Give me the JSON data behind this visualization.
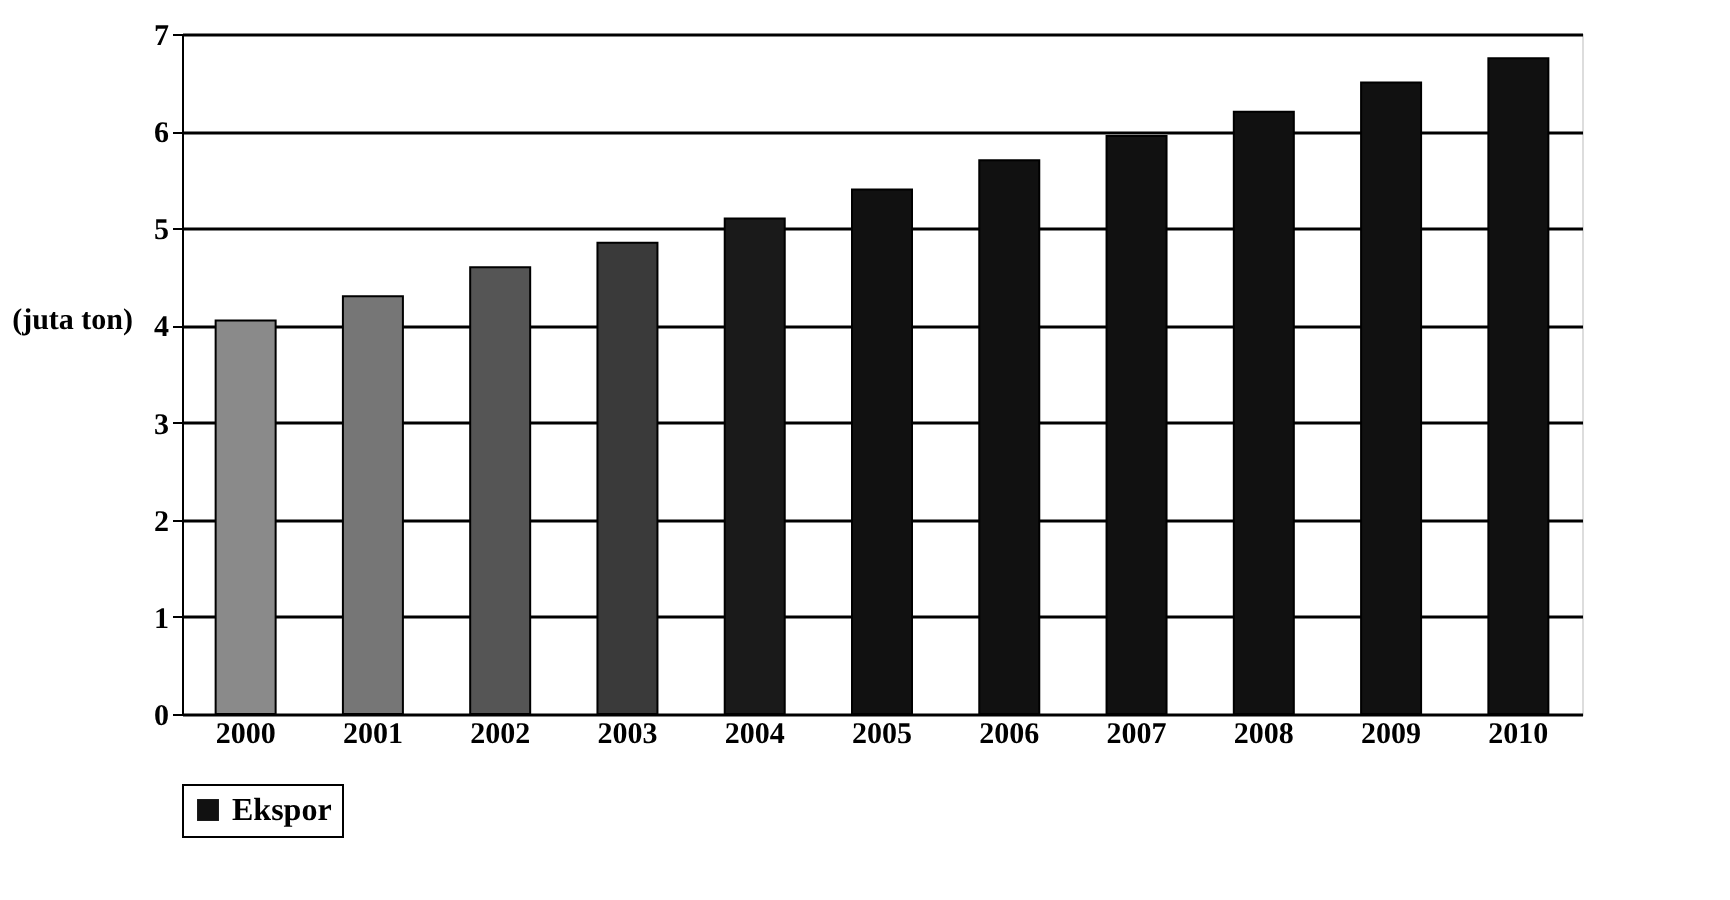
{
  "chart_data": {
    "type": "bar",
    "ylabel": "(juta ton)",
    "categories": [
      "2000",
      "2001",
      "2002",
      "2003",
      "2004",
      "2005",
      "2006",
      "2007",
      "2008",
      "2009",
      "2010"
    ],
    "series": [
      {
        "name": "Ekspor",
        "color": "#111111",
        "colors": [
          "#8a8a8a",
          "#767676",
          "#555555",
          "#3a3a3a",
          "#1a1a1a",
          "#111111",
          "#111111",
          "#111111",
          "#111111",
          "#111111",
          "#111111"
        ],
        "values": [
          4.05,
          4.3,
          4.6,
          4.85,
          5.1,
          5.4,
          5.7,
          5.95,
          6.2,
          6.5,
          6.75
        ]
      }
    ],
    "ylim": [
      0,
      7
    ],
    "yticks": [
      0,
      1,
      2,
      3,
      4,
      5,
      6,
      7
    ],
    "grid": "y",
    "legend": "bottom"
  }
}
